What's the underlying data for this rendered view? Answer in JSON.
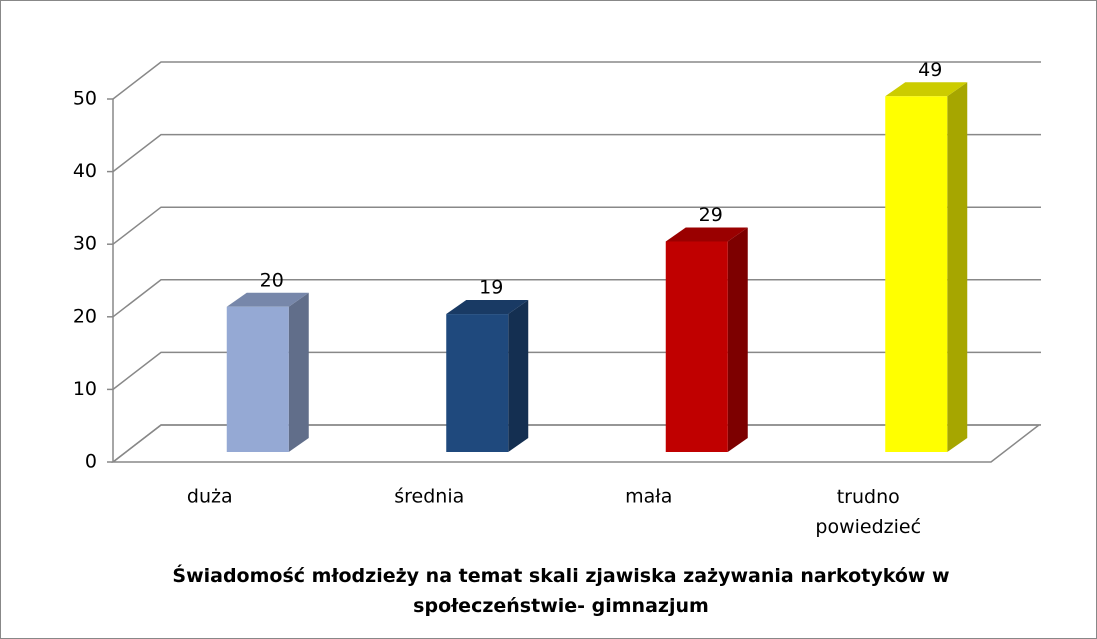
{
  "chart_data": {
    "type": "bar3d",
    "title": "Świadomość młodzieży na temat skali zjawiska zażywania narkotyków w społeczeństwie- gimnazjum",
    "categories": [
      "duża",
      "średnia",
      "mała",
      "trudno powiedzieć"
    ],
    "values": [
      20,
      19,
      29,
      49
    ],
    "colors": [
      "#95a9d4",
      "#1f497d",
      "#c00000",
      "#ffff00"
    ],
    "ylim": [
      0,
      50
    ],
    "yticks": [
      0,
      10,
      20,
      30,
      40,
      50
    ],
    "grid": true
  }
}
